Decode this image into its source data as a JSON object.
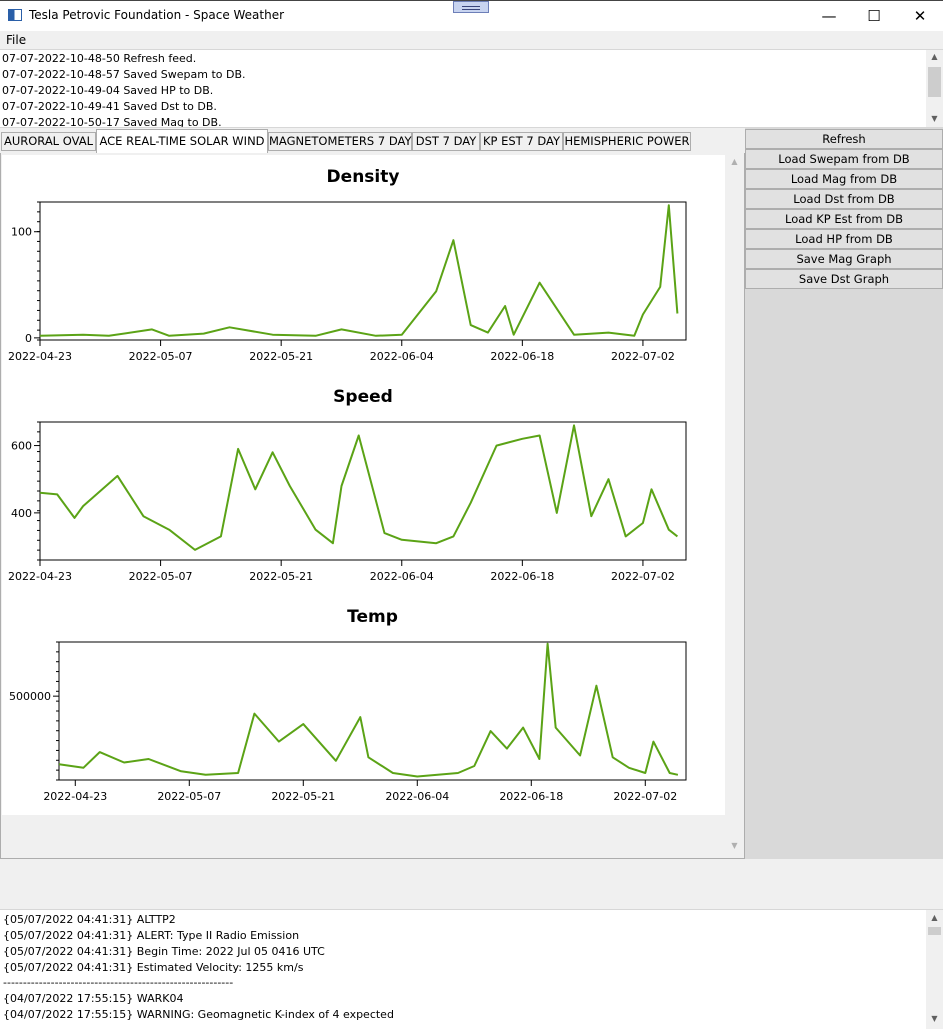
{
  "window": {
    "title": "Tesla Petrovic Foundation - Space Weather",
    "minimize": "—",
    "maximize": "☐",
    "close": "✕"
  },
  "menu": {
    "file": "File"
  },
  "log": [
    "07-07-2022-10-48-50 Refresh feed.",
    "07-07-2022-10-48-57 Saved Swepam to DB.",
    "07-07-2022-10-49-04 Saved HP to DB.",
    "07-07-2022-10-49-41 Saved Dst to DB.",
    "07-07-2022-10-50-17 Saved Mag to DB."
  ],
  "tabs": [
    {
      "label": "AURORAL OVAL",
      "active": false
    },
    {
      "label": "ACE REAL-TIME SOLAR WIND",
      "active": true
    },
    {
      "label": "MAGNETOMETERS 7 DAY",
      "active": false
    },
    {
      "label": "DST 7 DAY",
      "active": false
    },
    {
      "label": "KP EST 7 DAY",
      "active": false
    },
    {
      "label": "HEMISPHERIC POWER",
      "active": false
    }
  ],
  "sidebar": {
    "buttons": [
      "Refresh",
      "Load Swepam from DB",
      "Load Mag from DB",
      "Load Dst from DB",
      "Load KP Est from DB",
      "Load HP from DB",
      "Save Mag Graph",
      "Save Dst Graph"
    ]
  },
  "alerts": [
    "{05/07/2022 04:41:31} ALTTP2",
    "{05/07/2022 04:41:31} ALERT: Type II Radio Emission",
    "{05/07/2022 04:41:31} Begin Time: 2022 Jul 05 0416 UTC",
    "{05/07/2022 04:41:31} Estimated Velocity: 1255 km/s",
    "----------------------------------------------------------",
    "{04/07/2022 17:55:15} WARK04",
    "{04/07/2022 17:55:15} WARNING: Geomagnetic K-index of 4 expected"
  ],
  "colors": {
    "series": "#5ba316"
  },
  "chart_data": [
    {
      "type": "line",
      "title": "Density",
      "x_ticks": [
        "2022-04-23",
        "2022-05-07",
        "2022-05-21",
        "2022-06-04",
        "2022-06-18",
        "2022-07-02"
      ],
      "y_ticks": [
        0,
        100
      ],
      "xlim": [
        "2022-04-23",
        "2022-07-07"
      ],
      "ylim": [
        -2,
        128
      ],
      "x": [
        "2022-04-23",
        "2022-04-28",
        "2022-05-01",
        "2022-05-06",
        "2022-05-08",
        "2022-05-12",
        "2022-05-15",
        "2022-05-20",
        "2022-05-25",
        "2022-05-28",
        "2022-06-01",
        "2022-06-04",
        "2022-06-08",
        "2022-06-10",
        "2022-06-12",
        "2022-06-14",
        "2022-06-16",
        "2022-06-17",
        "2022-06-20",
        "2022-06-24",
        "2022-06-28",
        "2022-07-01",
        "2022-07-02",
        "2022-07-04",
        "2022-07-05",
        "2022-07-06"
      ],
      "y": [
        2,
        3,
        2,
        8,
        2,
        4,
        10,
        3,
        2,
        8,
        2,
        3,
        44,
        92,
        12,
        5,
        30,
        3,
        52,
        3,
        5,
        2,
        22,
        48,
        125,
        23
      ]
    },
    {
      "type": "line",
      "title": "Speed",
      "x_ticks": [
        "2022-04-23",
        "2022-05-07",
        "2022-05-21",
        "2022-06-04",
        "2022-06-18",
        "2022-07-02"
      ],
      "y_ticks": [
        400,
        600
      ],
      "xlim": [
        "2022-04-23",
        "2022-07-07"
      ],
      "ylim": [
        260,
        670
      ],
      "x": [
        "2022-04-23",
        "2022-04-25",
        "2022-04-27",
        "2022-04-28",
        "2022-05-02",
        "2022-05-05",
        "2022-05-08",
        "2022-05-11",
        "2022-05-14",
        "2022-05-16",
        "2022-05-18",
        "2022-05-20",
        "2022-05-22",
        "2022-05-25",
        "2022-05-27",
        "2022-05-28",
        "2022-05-30",
        "2022-06-02",
        "2022-06-04",
        "2022-06-08",
        "2022-06-10",
        "2022-06-12",
        "2022-06-15",
        "2022-06-18",
        "2022-06-20",
        "2022-06-22",
        "2022-06-24",
        "2022-06-26",
        "2022-06-28",
        "2022-06-30",
        "2022-07-02",
        "2022-07-03",
        "2022-07-05",
        "2022-07-06"
      ],
      "y": [
        460,
        455,
        385,
        420,
        510,
        390,
        350,
        290,
        330,
        590,
        470,
        580,
        480,
        350,
        310,
        480,
        630,
        340,
        320,
        310,
        330,
        430,
        600,
        620,
        630,
        400,
        660,
        390,
        500,
        330,
        370,
        470,
        350,
        330
      ]
    },
    {
      "type": "line",
      "title": "Temp",
      "x_ticks": [
        "2022-04-23",
        "2022-05-07",
        "2022-05-21",
        "2022-06-04",
        "2022-06-18",
        "2022-07-02"
      ],
      "y_ticks": [
        500000
      ],
      "xlim": [
        "2022-04-21",
        "2022-07-07"
      ],
      "ylim": [
        20000,
        810000
      ],
      "x": [
        "2022-04-21",
        "2022-04-24",
        "2022-04-26",
        "2022-04-29",
        "2022-05-02",
        "2022-05-06",
        "2022-05-09",
        "2022-05-13",
        "2022-05-15",
        "2022-05-18",
        "2022-05-21",
        "2022-05-25",
        "2022-05-28",
        "2022-05-29",
        "2022-06-01",
        "2022-06-04",
        "2022-06-09",
        "2022-06-11",
        "2022-06-13",
        "2022-06-15",
        "2022-06-17",
        "2022-06-19",
        "2022-06-20",
        "2022-06-21",
        "2022-06-24",
        "2022-06-26",
        "2022-06-28",
        "2022-06-30",
        "2022-07-02",
        "2022-07-03",
        "2022-07-05",
        "2022-07-06"
      ],
      "y": [
        110000,
        90000,
        180000,
        120000,
        140000,
        70000,
        50000,
        60000,
        400000,
        240000,
        340000,
        130000,
        380000,
        150000,
        60000,
        40000,
        60000,
        100000,
        300000,
        200000,
        320000,
        140000,
        800000,
        320000,
        160000,
        560000,
        150000,
        90000,
        60000,
        240000,
        60000,
        50000
      ]
    }
  ]
}
